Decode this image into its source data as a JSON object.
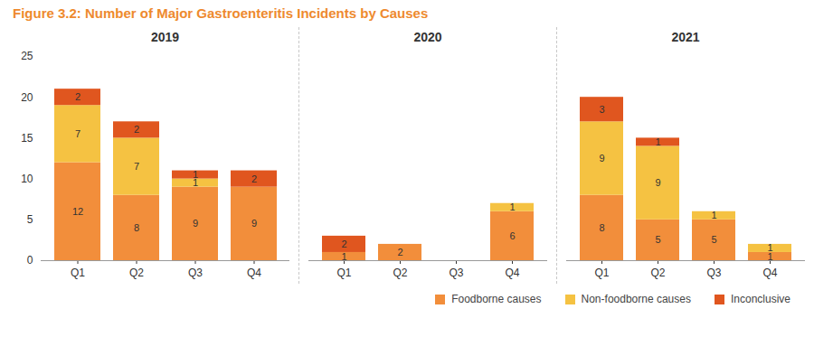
{
  "chart_data": {
    "type": "bar",
    "title": "Figure 3.2: Number of Major Gastroenteritis Incidents by Causes",
    "stacked": true,
    "data_labels": true,
    "grid": false,
    "legend": "bottom-right",
    "facets": [
      "2019",
      "2020",
      "2021"
    ],
    "categories": [
      "Q1",
      "Q2",
      "Q3",
      "Q4"
    ],
    "ylim": [
      0,
      25
    ],
    "yticks": [
      0,
      5,
      10,
      15,
      20,
      25
    ],
    "series": [
      {
        "name": "Foodborne causes",
        "color": "#F28E3B",
        "values": [
          [
            12,
            8,
            9,
            9
          ],
          [
            1,
            2,
            null,
            6
          ],
          [
            8,
            5,
            5,
            1
          ]
        ]
      },
      {
        "name": "Non-foodborne causes",
        "color": "#F5C242",
        "values": [
          [
            7,
            7,
            1,
            null
          ],
          [
            null,
            null,
            null,
            1
          ],
          [
            9,
            9,
            1,
            1
          ]
        ]
      },
      {
        "name": "Inconclusive",
        "color": "#E0561F",
        "values": [
          [
            2,
            2,
            1,
            2
          ],
          [
            2,
            null,
            null,
            null
          ],
          [
            3,
            1,
            null,
            null
          ]
        ]
      }
    ]
  }
}
